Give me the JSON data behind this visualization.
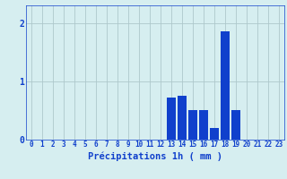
{
  "hours": [
    0,
    1,
    2,
    3,
    4,
    5,
    6,
    7,
    8,
    9,
    10,
    11,
    12,
    13,
    14,
    15,
    16,
    17,
    18,
    19,
    20,
    21,
    22,
    23
  ],
  "values": [
    0,
    0,
    0,
    0,
    0,
    0,
    0,
    0,
    0,
    0,
    0,
    0,
    0,
    0.72,
    0.75,
    0.5,
    0.5,
    0.2,
    1.85,
    0.5,
    0,
    0,
    0,
    0
  ],
  "bar_color": "#1040cc",
  "background_color": "#d6eef0",
  "grid_color": "#aec8cc",
  "axis_color": "#1040cc",
  "xlabel": "Précipitations 1h ( mm )",
  "xlabel_fontsize": 7.5,
  "tick_fontsize": 5.5,
  "ytick_fontsize": 7,
  "ylim": [
    0,
    2.3
  ],
  "yticks": [
    0,
    1,
    2
  ],
  "xlim": [
    -0.5,
    23.5
  ],
  "figsize": [
    3.2,
    2.0
  ],
  "dpi": 100
}
